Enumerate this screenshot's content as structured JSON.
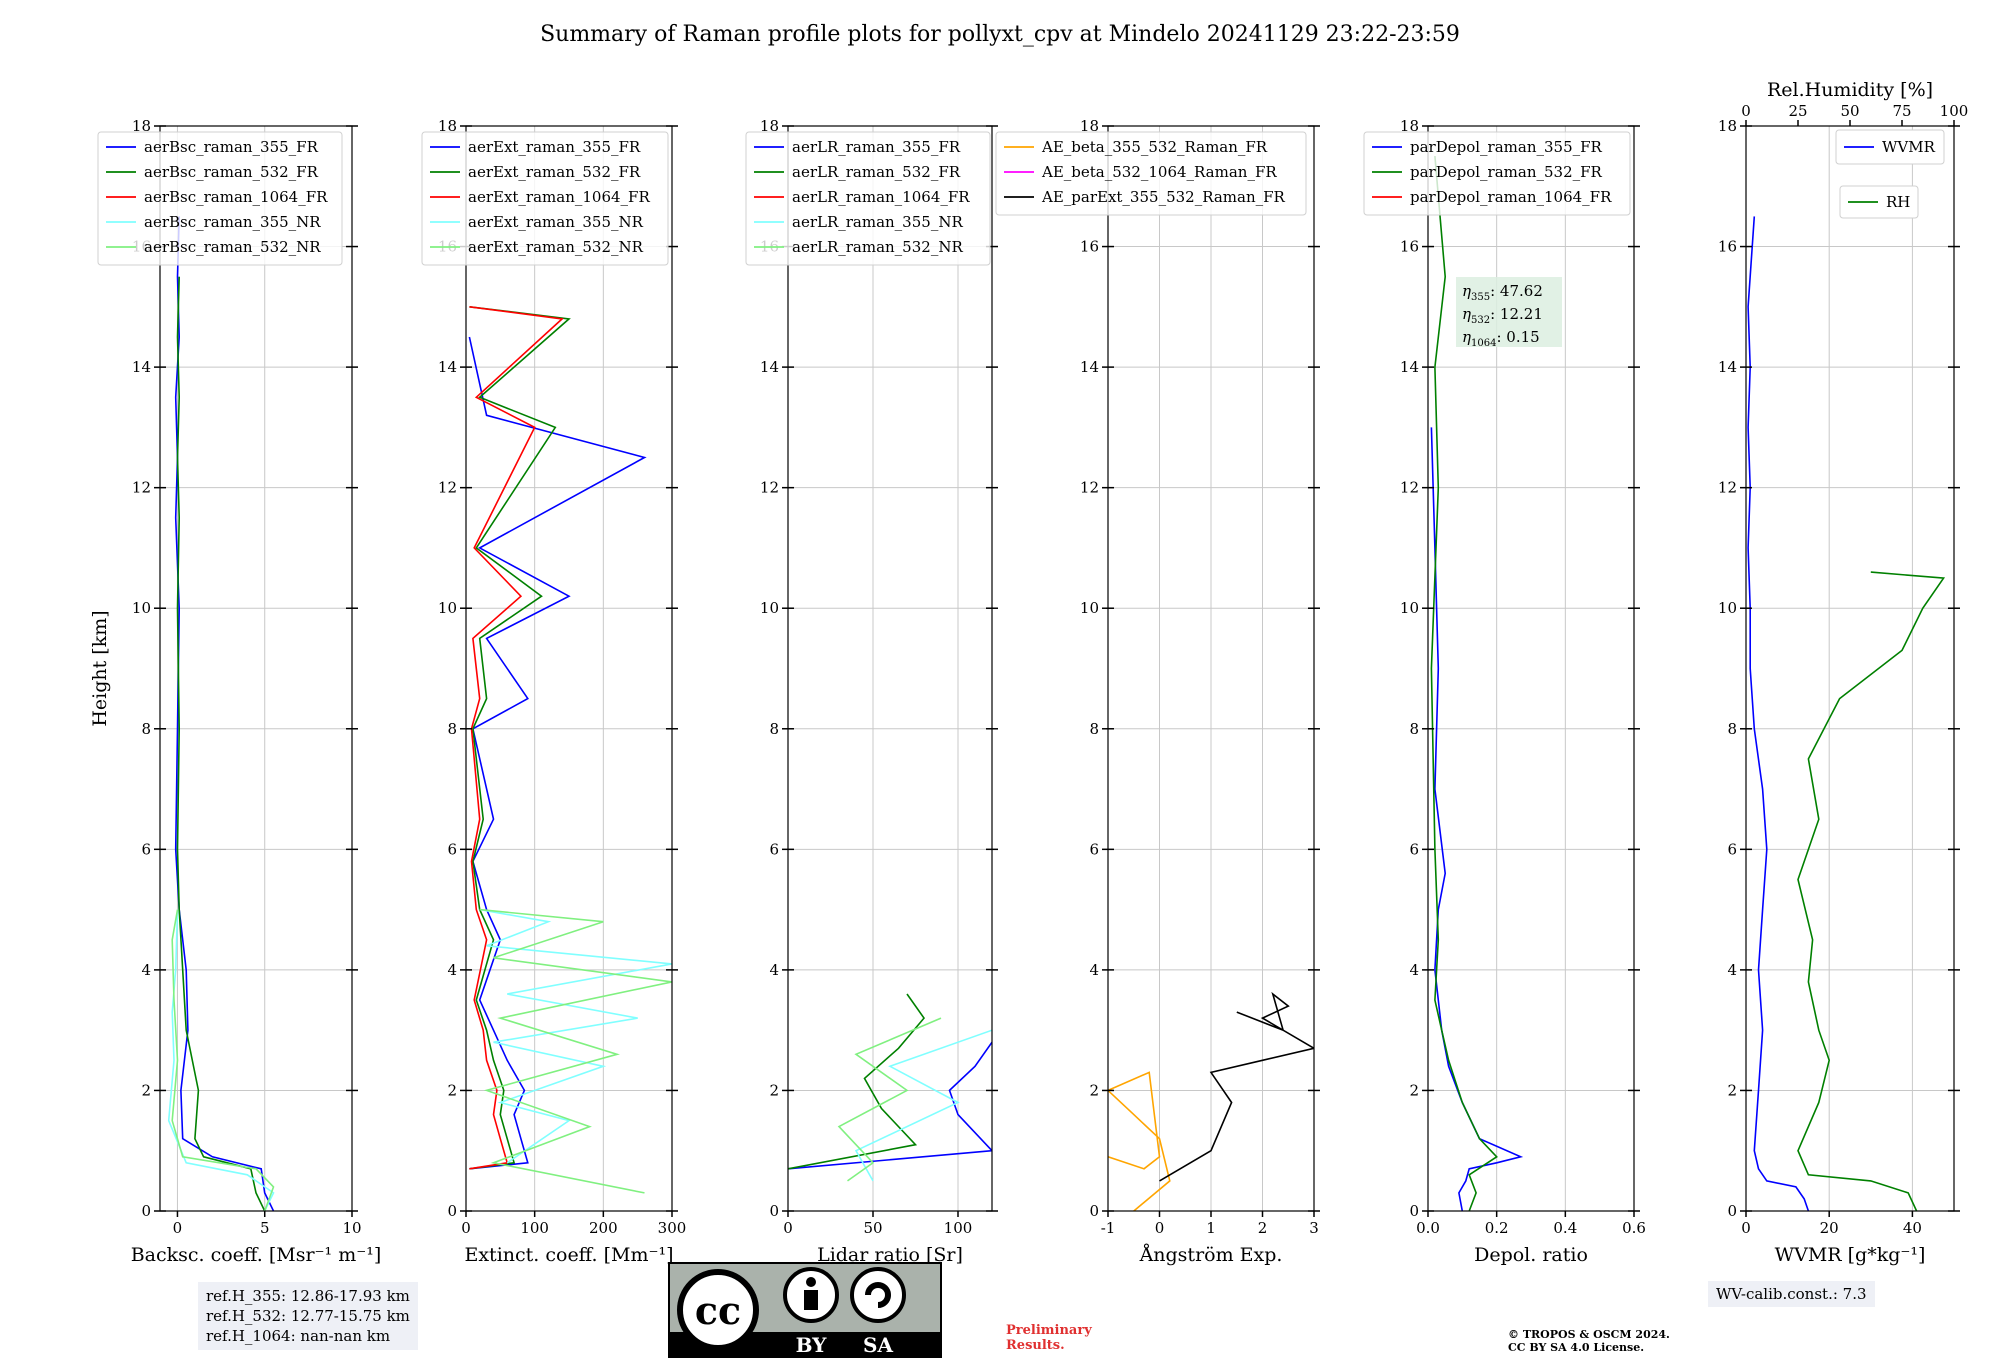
{
  "title": "Summary of Raman profile plots for pollyxt_cpv at Mindelo 20241129 23:22-23:59",
  "ref_lines": [
    "ref.H_355: 12.86-17.93 km",
    "ref.H_532: 12.77-15.75 km",
    "ref.H_1064: nan-nan km"
  ],
  "wv_calib": "WV-calib.const.: 7.3",
  "preliminary": [
    "Preliminary",
    "Results."
  ],
  "copyright": [
    "© TROPOS & OSCM 2024.",
    "CC BY SA 4.0 License."
  ],
  "cc_badge": {
    "cc": "cc",
    "by": "BY",
    "sa": "SA"
  },
  "colors": {
    "blue": "#0000ff",
    "green": "#008000",
    "red": "#ff0000",
    "cyan": "#80ffff",
    "lightgreen": "#80f080",
    "orange": "#ffa500",
    "magenta": "#ff00ff",
    "black": "#000000"
  },
  "chart_data": [
    {
      "type": "line",
      "ylabel": "Height [km]",
      "xlabel": "Backsc. coeff. [Msr⁻¹ m⁻¹]",
      "xlim": [
        -1,
        10
      ],
      "ylim": [
        0,
        18
      ],
      "xticks": [
        0,
        5,
        10
      ],
      "yticks": [
        0,
        2,
        4,
        6,
        8,
        10,
        12,
        14,
        16,
        18
      ],
      "legend": [
        "aerBsc_raman_355_FR",
        "aerBsc_raman_532_FR",
        "aerBsc_raman_1064_FR",
        "aerBsc_raman_355_NR",
        "aerBsc_raman_532_NR"
      ],
      "series": [
        {
          "name": "aerBsc_raman_355_FR",
          "color": "#0000ff",
          "x": [
            5.5,
            5.0,
            4.8,
            2.0,
            0.3,
            0.2,
            0.6,
            0.5,
            0.1,
            -0.1,
            0.0,
            0.1,
            -0.1,
            0.0,
            -0.1,
            0.1,
            0.0,
            0.1
          ],
          "y": [
            0.0,
            0.3,
            0.7,
            0.9,
            1.2,
            2.0,
            3.0,
            4.0,
            5.0,
            6.0,
            8.0,
            10.0,
            11.5,
            12.5,
            13.5,
            14.5,
            15.5,
            16.5
          ]
        },
        {
          "name": "aerBsc_raman_532_FR",
          "color": "#008000",
          "x": [
            5.0,
            4.5,
            4.2,
            1.5,
            1.0,
            1.2,
            0.5,
            0.3,
            0.1,
            0.0,
            0.1,
            0.0,
            0.1,
            0.0,
            0.1,
            0.0,
            0.1
          ],
          "y": [
            0.0,
            0.3,
            0.7,
            0.9,
            1.2,
            2.0,
            3.0,
            4.0,
            5.0,
            6.0,
            8.0,
            10.0,
            11.5,
            12.5,
            13.5,
            14.5,
            15.5
          ]
        },
        {
          "name": "aerBsc_raman_1064_FR",
          "color": "#ff0000",
          "x": [],
          "y": []
        },
        {
          "name": "aerBsc_raman_355_NR",
          "color": "#80ffff",
          "x": [
            5.0,
            5.5,
            4.0,
            0.5,
            -0.5,
            -0.2,
            -0.3,
            -0.1,
            0.0
          ],
          "y": [
            0.0,
            0.3,
            0.6,
            0.8,
            1.5,
            2.5,
            3.3,
            4.0,
            5.0
          ]
        },
        {
          "name": "aerBsc_raman_532_NR",
          "color": "#80f080",
          "x": [
            5.0,
            5.5,
            4.5,
            0.3,
            -0.3,
            0.0,
            -0.2,
            -0.3,
            0.0
          ],
          "y": [
            0.0,
            0.4,
            0.7,
            0.9,
            1.5,
            2.5,
            3.5,
            4.5,
            5.0
          ]
        }
      ]
    },
    {
      "type": "line",
      "ylabel": "",
      "xlabel": "Extinct. coeff. [Mm⁻¹]",
      "xlim": [
        0,
        300
      ],
      "ylim": [
        0,
        18
      ],
      "xticks": [
        0,
        100,
        200,
        300
      ],
      "yticks": [
        0,
        2,
        4,
        6,
        8,
        10,
        12,
        14,
        16,
        18
      ],
      "legend": [
        "aerExt_raman_355_FR",
        "aerExt_raman_532_FR",
        "aerExt_raman_1064_FR",
        "aerExt_raman_355_NR",
        "aerExt_raman_532_NR"
      ],
      "series": [
        {
          "name": "aerExt_raman_355_FR",
          "color": "#0000ff",
          "x": [
            5,
            90,
            80,
            70,
            85,
            60,
            40,
            20,
            50,
            30,
            10,
            40,
            10,
            90,
            30,
            150,
            20,
            260,
            30,
            5
          ],
          "y": [
            0.7,
            0.8,
            1.2,
            1.6,
            2.0,
            2.5,
            3.0,
            3.5,
            4.5,
            5.0,
            5.8,
            6.5,
            8.0,
            8.5,
            9.5,
            10.2,
            11.0,
            12.5,
            13.2,
            14.5
          ]
        },
        {
          "name": "aerExt_raman_532_FR",
          "color": "#008000",
          "x": [
            5,
            70,
            60,
            50,
            55,
            40,
            30,
            15,
            40,
            20,
            10,
            25,
            10,
            30,
            20,
            110,
            15,
            130,
            20,
            150,
            5
          ],
          "y": [
            0.7,
            0.8,
            1.2,
            1.6,
            2.0,
            2.5,
            3.0,
            3.5,
            4.5,
            5.0,
            5.8,
            6.5,
            8.0,
            8.5,
            9.5,
            10.2,
            11.0,
            13.0,
            13.5,
            14.8,
            15.0
          ]
        },
        {
          "name": "aerExt_raman_1064_FR",
          "color": "#ff0000",
          "x": [
            5,
            60,
            50,
            40,
            45,
            30,
            25,
            12,
            30,
            15,
            8,
            20,
            8,
            20,
            10,
            80,
            12,
            100,
            15,
            140,
            5
          ],
          "y": [
            0.7,
            0.8,
            1.2,
            1.6,
            2.0,
            2.5,
            3.0,
            3.5,
            4.5,
            5.0,
            5.8,
            6.5,
            8.0,
            8.5,
            9.5,
            10.2,
            11.0,
            13.0,
            13.5,
            14.8,
            15.0
          ]
        },
        {
          "name": "aerExt_raman_355_NR",
          "color": "#80ffff",
          "x": [
            60,
            150,
            50,
            200,
            40,
            250,
            60,
            300,
            30,
            120,
            20
          ],
          "y": [
            0.8,
            1.5,
            1.8,
            2.4,
            2.8,
            3.2,
            3.6,
            4.1,
            4.4,
            4.8,
            5.0
          ]
        },
        {
          "name": "aerExt_raman_532_NR",
          "color": "#80f080",
          "x": [
            260,
            40,
            180,
            30,
            220,
            50,
            300,
            40,
            200,
            20
          ],
          "y": [
            0.3,
            0.8,
            1.4,
            2.0,
            2.6,
            3.2,
            3.8,
            4.2,
            4.8,
            5.0
          ]
        }
      ]
    },
    {
      "type": "line",
      "ylabel": "",
      "xlabel": "Lidar ratio [Sr]",
      "xlim": [
        0,
        120
      ],
      "ylim": [
        0,
        18
      ],
      "xticks": [
        0,
        50,
        100
      ],
      "yticks": [
        0,
        2,
        4,
        6,
        8,
        10,
        12,
        14,
        16,
        18
      ],
      "legend": [
        "aerLR_raman_355_FR",
        "aerLR_raman_532_FR",
        "aerLR_raman_1064_FR",
        "aerLR_raman_355_NR",
        "aerLR_raman_532_NR"
      ],
      "series": [
        {
          "name": "aerLR_raman_355_FR",
          "color": "#0000ff",
          "x": [
            0,
            120,
            100,
            95,
            110,
            120
          ],
          "y": [
            0.7,
            1.0,
            1.6,
            2.0,
            2.4,
            2.8
          ]
        },
        {
          "name": "aerLR_raman_532_FR",
          "color": "#008000",
          "x": [
            0,
            75,
            55,
            45,
            65,
            80,
            70
          ],
          "y": [
            0.7,
            1.1,
            1.7,
            2.2,
            2.7,
            3.2,
            3.6
          ]
        },
        {
          "name": "aerLR_raman_1064_FR",
          "color": "#ff0000",
          "x": [],
          "y": []
        },
        {
          "name": "aerLR_raman_355_NR",
          "color": "#80ffff",
          "x": [
            50,
            40,
            100,
            60,
            120
          ],
          "y": [
            0.5,
            1.0,
            1.8,
            2.4,
            3.0
          ]
        },
        {
          "name": "aerLR_raman_532_NR",
          "color": "#80f080",
          "x": [
            35,
            50,
            30,
            70,
            40,
            90
          ],
          "y": [
            0.5,
            0.8,
            1.4,
            2.0,
            2.6,
            3.2
          ]
        }
      ]
    },
    {
      "type": "line",
      "ylabel": "",
      "xlabel": "Ångström Exp.",
      "xlim": [
        -1,
        3
      ],
      "ylim": [
        0,
        18
      ],
      "xticks": [
        -1,
        0,
        1,
        2,
        3
      ],
      "yticks": [
        0,
        2,
        4,
        6,
        8,
        10,
        12,
        14,
        16,
        18
      ],
      "legend": [
        "AE_beta_355_532_Raman_FR",
        "AE_beta_532_1064_Raman_FR",
        "AE_parExt_355_532_Raman_FR"
      ],
      "series": [
        {
          "name": "AE_beta_355_532_Raman_FR",
          "color": "#ffa500",
          "x": [
            -0.5,
            0.2,
            0.0,
            -0.5,
            -1.0,
            -0.2,
            0.0,
            -0.3,
            -1.0
          ],
          "y": [
            0.0,
            0.5,
            1.2,
            1.6,
            2.0,
            2.3,
            0.9,
            0.7,
            0.9
          ]
        },
        {
          "name": "AE_beta_532_1064_Raman_FR",
          "color": "#ff00ff",
          "x": [],
          "y": []
        },
        {
          "name": "AE_parExt_355_532_Raman_FR",
          "color": "#000000",
          "x": [
            0.0,
            1.0,
            1.4,
            1.0,
            2.0,
            3.0,
            2.0,
            2.5,
            2.2,
            2.4,
            1.5
          ],
          "y": [
            0.5,
            1.0,
            1.8,
            2.3,
            2.5,
            2.7,
            3.2,
            3.4,
            3.6,
            3.0,
            3.3
          ]
        }
      ]
    },
    {
      "type": "line",
      "ylabel": "",
      "xlabel": "Depol. ratio",
      "xlim": [
        0.0,
        0.6
      ],
      "ylim": [
        0,
        18
      ],
      "xticks": [
        0.0,
        0.2,
        0.4,
        0.6
      ],
      "yticks": [
        0,
        2,
        4,
        6,
        8,
        10,
        12,
        14,
        16,
        18
      ],
      "legend": [
        "parDepol_raman_355_FR",
        "parDepol_raman_532_FR",
        "parDepol_raman_1064_FR"
      ],
      "annotations": [
        {
          "symbol": "η",
          "sub": "355",
          "value": "47.62"
        },
        {
          "symbol": "η",
          "sub": "532",
          "value": "12.21"
        },
        {
          "symbol": "η",
          "sub": "1064",
          "value": "0.15"
        }
      ],
      "series": [
        {
          "name": "parDepol_raman_355_FR",
          "color": "#0000ff",
          "x": [
            0.1,
            0.09,
            0.11,
            0.12,
            0.2,
            0.27,
            0.15,
            0.1,
            0.06,
            0.04,
            0.02,
            0.03,
            0.05,
            0.02,
            0.03,
            0.02,
            0.01
          ],
          "y": [
            0.0,
            0.3,
            0.5,
            0.7,
            0.8,
            0.9,
            1.2,
            1.8,
            2.4,
            3.0,
            4.0,
            5.0,
            5.6,
            7.0,
            9.0,
            11.0,
            13.0
          ]
        },
        {
          "name": "parDepol_raman_532_FR",
          "color": "#008000",
          "x": [
            0.12,
            0.14,
            0.12,
            0.2,
            0.15,
            0.1,
            0.06,
            0.04,
            0.02,
            0.03,
            0.02,
            0.01,
            0.03,
            0.02,
            0.05,
            0.02
          ],
          "y": [
            0.0,
            0.3,
            0.6,
            0.9,
            1.2,
            1.8,
            2.5,
            3.0,
            3.5,
            4.5,
            6.0,
            9.0,
            12.0,
            14.0,
            15.5,
            17.5
          ]
        },
        {
          "name": "parDepol_raman_1064_FR",
          "color": "#ff0000",
          "x": [],
          "y": []
        }
      ]
    },
    {
      "type": "line",
      "ylabel": "",
      "xlabel": "WVMR [g*kg⁻¹]",
      "x2label": "Rel.Humidity [%]",
      "xlim": [
        0,
        50
      ],
      "x2lim": [
        0,
        100
      ],
      "ylim": [
        0,
        18
      ],
      "xticks": [
        0,
        20,
        40
      ],
      "x2ticks": [
        0,
        25,
        50,
        75,
        100
      ],
      "yticks": [
        0,
        2,
        4,
        6,
        8,
        10,
        12,
        14,
        16,
        18
      ],
      "legend": [
        "WVMR",
        "RH"
      ],
      "series": [
        {
          "name": "WVMR",
          "color": "#0000ff",
          "x": [
            15,
            14,
            12,
            5,
            3,
            2,
            3,
            4,
            3,
            4,
            5,
            4,
            2,
            1,
            1,
            0.5,
            1,
            0.5,
            1,
            0.5,
            2
          ],
          "y": [
            0.0,
            0.2,
            0.4,
            0.5,
            0.7,
            1.0,
            2.0,
            3.0,
            4.0,
            5.0,
            6.0,
            7.0,
            8.0,
            9.0,
            10.0,
            11.0,
            12.0,
            13.0,
            14.0,
            15.0,
            16.5
          ]
        },
        {
          "name": "RH",
          "color": "#008000",
          "x": [
            82,
            78,
            60,
            30,
            25,
            35,
            40,
            35,
            30,
            32,
            25,
            35,
            30,
            45,
            75,
            85,
            95,
            60
          ],
          "y": [
            0.0,
            0.3,
            0.5,
            0.6,
            1.0,
            1.8,
            2.5,
            3.0,
            3.8,
            4.5,
            5.5,
            6.5,
            7.5,
            8.5,
            9.3,
            10.0,
            10.5,
            10.6
          ]
        }
      ]
    }
  ]
}
